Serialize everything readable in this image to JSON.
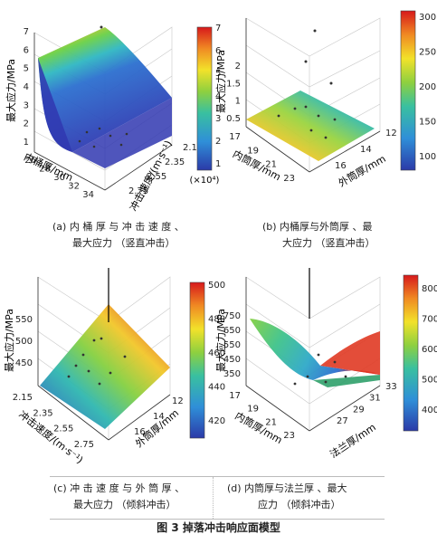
{
  "figure_title": "图 3    掉落冲击响应面模型",
  "captions": {
    "a": [
      "(a)  内 桶 厚 与 冲 击 速 度 、",
      "最大应力 （竖直冲击）"
    ],
    "b": [
      "(b)  内桶厚与外筒厚 、最",
      "大应力 （竖直冲击）"
    ],
    "c": [
      "(c)  冲 击 速 度 与 外 筒 厚 、",
      "最大应力 （倾斜冲击）"
    ],
    "d": [
      "(d)  内筒厚与法兰厚 、最大",
      "应力 （倾斜冲击）"
    ]
  },
  "chart_data": [
    {
      "type": "surface",
      "panel": "a",
      "zlabel": "最大应力/MPa",
      "xlabel": "内桶厚/mm",
      "ylabel": "冲击速度/(m·s⁻¹)",
      "x_ticks": [
        "26",
        "28",
        "30",
        "32",
        "34"
      ],
      "y_ticks": [
        "2.15",
        "2.35",
        "2.55",
        "2.75"
      ],
      "z_ticks": [
        "1",
        "2",
        "3",
        "4",
        "5",
        "6",
        "7"
      ],
      "colorbar_ticks": [
        "1",
        "2",
        "3",
        "4",
        "5",
        "6",
        "7"
      ],
      "colorbar_unit": "(×10⁴)",
      "xlim": [
        26,
        34
      ],
      "ylim": [
        2.15,
        2.75
      ],
      "zlim": [
        1,
        7
      ]
    },
    {
      "type": "surface",
      "panel": "b",
      "zlabel": "最大应力/MPa",
      "xlabel": "内筒厚/mm",
      "ylabel": "外筒厚/mm",
      "x_ticks": [
        "17",
        "19",
        "21",
        "23"
      ],
      "y_ticks": [
        "12",
        "14",
        "16"
      ],
      "z_ticks": [
        "0.5",
        "1",
        "1.5",
        "2"
      ],
      "colorbar_ticks": [
        "100",
        "150",
        "200",
        "250",
        "300"
      ],
      "xlim": [
        17,
        23
      ],
      "ylim": [
        12,
        16
      ],
      "zlim": [
        0.5,
        2
      ]
    },
    {
      "type": "surface",
      "panel": "c",
      "zlabel": "最大应力/MPa",
      "xlabel": "冲击速度/(m·s⁻¹)",
      "ylabel": "外筒厚/mm",
      "x_ticks": [
        "2.15",
        "2.35",
        "2.55",
        "2.75"
      ],
      "y_ticks": [
        "12",
        "14",
        "16"
      ],
      "z_ticks": [
        "450",
        "500",
        "550"
      ],
      "colorbar_ticks": [
        "420",
        "440",
        "460",
        "480",
        "500"
      ],
      "xlim": [
        2.15,
        2.75
      ],
      "ylim": [
        12,
        16
      ],
      "zlim": [
        420,
        560
      ]
    },
    {
      "type": "surface",
      "panel": "d",
      "zlabel": "最大应力/MPa",
      "xlabel": "内筒厚/mm",
      "ylabel": "法兰厚/mm",
      "x_ticks": [
        "17",
        "19",
        "21",
        "23"
      ],
      "y_ticks": [
        "27",
        "29",
        "31",
        "33"
      ],
      "z_ticks": [
        "350",
        "450",
        "550",
        "650",
        "750"
      ],
      "colorbar_ticks": [
        "400",
        "500",
        "600",
        "700",
        "800"
      ],
      "xlim": [
        17,
        23
      ],
      "ylim": [
        27,
        33
      ],
      "zlim": [
        350,
        800
      ]
    }
  ]
}
